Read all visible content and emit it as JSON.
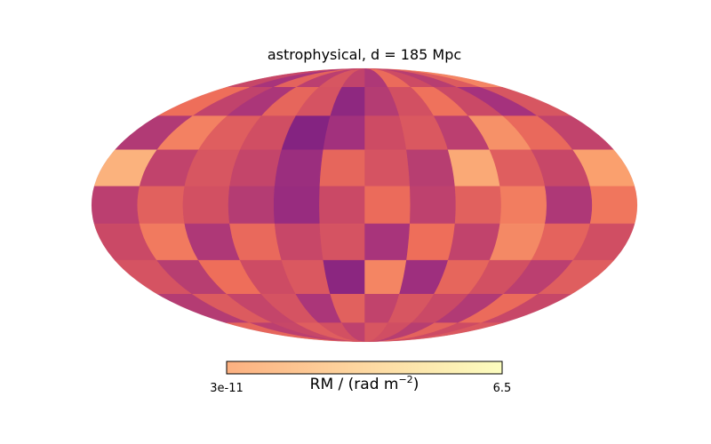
{
  "chart_data": {
    "type": "heatmap",
    "projection": "mollweide",
    "title": "astrophysical, d = 185 Mpc",
    "colormap": "magma (light range)",
    "colorbar": {
      "label_main": "RM / (rad m",
      "label_sup": "−2",
      "label_tail": ")",
      "min_label": "3e-11",
      "max_label": "6.5",
      "vmin": 3e-11,
      "vmax": 6.5,
      "stops": [
        "#fcb080",
        "#fdd49e",
        "#fcfdbf"
      ]
    },
    "grid": false,
    "values": {
      "lat_bands": [
        72,
        54,
        36,
        18,
        0,
        -18,
        -36,
        -54,
        -72
      ],
      "lon_step_deg": 30,
      "note_rows_in_rm": [
        [
          4.5,
          3.2,
          1.9,
          2.6,
          3.8,
          1.6,
          2.2,
          3.0,
          2.0,
          3.5,
          1.4,
          2.4
        ],
        [
          3.0,
          1.3,
          2.5,
          4.0,
          2.8,
          1.8,
          0.6,
          2.9,
          3.6,
          1.5,
          2.2,
          3.9
        ],
        [
          2.2,
          3.7,
          4.8,
          2.0,
          3.1,
          2.6,
          1.2,
          0.3,
          2.7,
          3.3,
          4.4,
          1.7
        ],
        [
          5.2,
          2.4,
          3.3,
          5.4,
          1.9,
          2.9,
          3.6,
          1.0,
          2.3,
          3.0,
          2.2,
          5.6
        ],
        [
          4.1,
          1.6,
          4.3,
          3.4,
          2.1,
          3.8,
          2.5,
          0.9,
          1.8,
          2.8,
          3.4,
          2.0
        ],
        [
          2.7,
          3.5,
          4.6,
          2.2,
          3.9,
          1.4,
          2.9,
          2.4,
          3.7,
          1.6,
          4.2,
          2.5
        ],
        [
          3.3,
          2.0,
          2.8,
          3.6,
          1.1,
          4.5,
          0.5,
          3.1,
          2.6,
          3.9,
          1.9,
          2.9
        ],
        [
          2.4,
          3.8,
          1.7,
          2.5,
          3.0,
          2.2,
          3.4,
          1.5,
          2.9,
          2.3,
          3.2,
          1.8
        ],
        [
          3.1,
          2.6,
          3.5,
          1.9,
          2.7,
          3.0,
          2.1,
          2.8,
          3.3,
          2.4,
          2.0,
          3.6
        ]
      ]
    }
  }
}
